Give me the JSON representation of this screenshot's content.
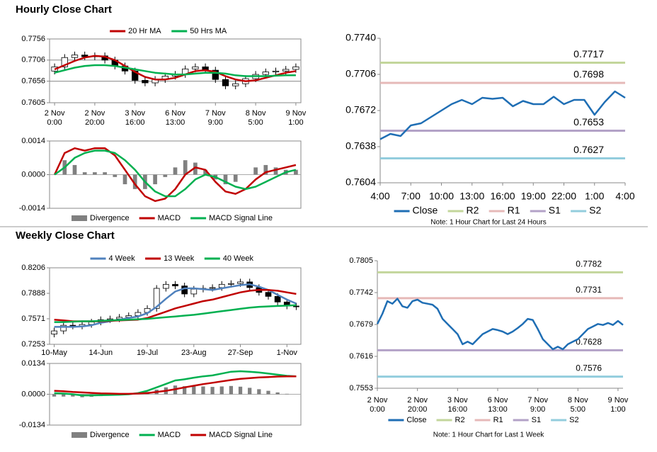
{
  "headings": [
    "Hourly Close Chart",
    "Weekly Close Chart"
  ],
  "chart_data": [
    {
      "type": "candlestick",
      "categories": [
        [
          "2 Nov",
          "0:00"
        ],
        null,
        null,
        null,
        [
          "2 Nov",
          "20:00"
        ],
        null,
        null,
        null,
        [
          "3 Nov",
          "16:00"
        ],
        null,
        null,
        null,
        [
          "6 Nov",
          "13:00"
        ],
        null,
        null,
        null,
        [
          "7 Nov",
          "9:00"
        ],
        null,
        null,
        null,
        [
          "8 Nov",
          "5:00"
        ],
        null,
        null,
        null,
        [
          "9 Nov",
          "1:00"
        ]
      ],
      "candles": {
        "open": [
          0.768,
          0.769,
          0.7712,
          0.7718,
          0.7714,
          0.7716,
          0.7706,
          0.7692,
          0.768,
          0.7658,
          0.7652,
          0.766,
          0.7668,
          0.7672,
          0.7685,
          0.769,
          0.7682,
          0.766,
          0.7645,
          0.765,
          0.7662,
          0.7672,
          0.7678,
          0.768,
          0.7684
        ],
        "high": [
          0.7698,
          0.772,
          0.7726,
          0.7726,
          0.7724,
          0.7724,
          0.7714,
          0.77,
          0.7688,
          0.7666,
          0.7668,
          0.7676,
          0.768,
          0.7693,
          0.7698,
          0.7698,
          0.769,
          0.7668,
          0.7658,
          0.767,
          0.768,
          0.7686,
          0.7688,
          0.7692,
          0.7698
        ],
        "low": [
          0.7672,
          0.7682,
          0.7704,
          0.7706,
          0.7706,
          0.7698,
          0.7684,
          0.7672,
          0.765,
          0.7644,
          0.7644,
          0.7652,
          0.766,
          0.7664,
          0.7677,
          0.7674,
          0.7652,
          0.7637,
          0.7637,
          0.7642,
          0.7654,
          0.7664,
          0.767,
          0.7672,
          0.7676
        ],
        "close": [
          0.769,
          0.7712,
          0.7718,
          0.7714,
          0.7716,
          0.7706,
          0.7692,
          0.768,
          0.7658,
          0.7652,
          0.766,
          0.7668,
          0.7672,
          0.7685,
          0.769,
          0.7682,
          0.766,
          0.7645,
          0.765,
          0.7662,
          0.7672,
          0.7678,
          0.768,
          0.7684,
          0.769
        ]
      },
      "series": [
        {
          "name": "20 Hr MA",
          "color": "#c00000",
          "values": [
            0.7684,
            0.7694,
            0.7704,
            0.7712,
            0.7716,
            0.7714,
            0.7706,
            0.7692,
            0.7678,
            0.7666,
            0.766,
            0.766,
            0.7664,
            0.7672,
            0.768,
            0.7682,
            0.7678,
            0.7668,
            0.766,
            0.7656,
            0.7658,
            0.7664,
            0.767,
            0.7676,
            0.768
          ]
        },
        {
          "name": "50 Hrs MA",
          "color": "#00b050",
          "values": [
            0.7676,
            0.7682,
            0.7688,
            0.7692,
            0.7694,
            0.7694,
            0.7692,
            0.7688,
            0.7684,
            0.768,
            0.7676,
            0.7674,
            0.7672,
            0.7672,
            0.7674,
            0.7676,
            0.7676,
            0.7674,
            0.767,
            0.7668,
            0.7668,
            0.7668,
            0.7669,
            0.767,
            0.767
          ]
        }
      ],
      "ylim": [
        0.7605,
        0.7756
      ],
      "yticks": [
        0.7605,
        0.7656,
        0.7706,
        0.7756
      ],
      "grid": true
    },
    {
      "type": "combo",
      "series": [
        {
          "name": "Divergence",
          "color": "#808080",
          "kind": "bar",
          "values": [
            0,
            0.0006,
            0.0004,
            0.0001,
            0.0001,
            0.0001,
            -0.0001,
            -0.0004,
            -0.0006,
            -0.0006,
            -0.0004,
            -0.0001,
            0.0003,
            0.0006,
            0.0005,
            0.0002,
            -0.0002,
            -0.0004,
            -0.0003,
            0,
            0.0003,
            0.0004,
            0.0003,
            0.0002,
            0.0002
          ]
        },
        {
          "name": "MACD",
          "color": "#c00000",
          "kind": "line",
          "values": [
            0,
            0.0009,
            0.0011,
            0.001,
            0.0011,
            0.0011,
            0.0008,
            0.0002,
            -0.0004,
            -0.0009,
            -0.0011,
            -0.001,
            -0.0006,
            0.0,
            0.0003,
            0.0002,
            -0.0003,
            -0.0007,
            -0.0008,
            -0.0006,
            -0.0002,
            0.0001,
            0.0002,
            0.0003,
            0.0004
          ]
        },
        {
          "name": "MACD Signal Line",
          "color": "#00b050",
          "kind": "line",
          "values": [
            0,
            0.0003,
            0.0007,
            0.0009,
            0.001,
            0.001,
            0.0009,
            0.0006,
            0.0002,
            -0.0003,
            -0.0007,
            -0.0009,
            -0.0009,
            -0.0006,
            -0.0002,
            0.0,
            -0.0001,
            -0.0003,
            -0.0005,
            -0.0006,
            -0.0005,
            -0.0003,
            -0.0001,
            0.0001,
            0.0002
          ]
        }
      ],
      "ylim": [
        -0.0014,
        0.0014
      ],
      "yticks": [
        -0.0014,
        {
          "value": 0,
          "label": "0.0000"
        },
        0.0014
      ],
      "grid": false
    },
    {
      "type": "line",
      "categories": [
        "4:00",
        null,
        null,
        "7:00",
        null,
        null,
        "10:00",
        null,
        null,
        "13:00",
        null,
        null,
        "16:00",
        null,
        null,
        "19:00",
        null,
        null,
        "22:00",
        null,
        null,
        "1:00",
        null,
        null,
        "4:00"
      ],
      "series": [
        {
          "name": "Close",
          "color": "#1f6eb4",
          "values": [
            0.7645,
            0.765,
            0.7648,
            0.7658,
            0.766,
            0.7666,
            0.7672,
            0.7678,
            0.7682,
            0.7678,
            0.7684,
            0.7683,
            0.7684,
            0.7676,
            0.7681,
            0.7678,
            0.7678,
            0.7685,
            0.7678,
            0.7682,
            0.7682,
            0.7668,
            0.768,
            0.769,
            0.7684
          ]
        }
      ],
      "levels": [
        {
          "name": "R2",
          "color": "#c3d69b",
          "value": 0.7717
        },
        {
          "name": "R1",
          "color": "#e6b9b8",
          "value": 0.7698
        },
        {
          "name": "S1",
          "color": "#b3a2c7",
          "value": 0.7653
        },
        {
          "name": "S2",
          "color": "#93cddd",
          "value": 0.7627
        }
      ],
      "ylim": [
        0.7604,
        0.774
      ],
      "yticks": [
        0.7604,
        0.7638,
        0.7672,
        0.7706,
        {
          "value": 0.774,
          "label": "0.7740"
        }
      ],
      "note": "Note: 1 Hour Chart for Last 24 Hours",
      "grid": false
    },
    {
      "type": "candlestick",
      "categories": [
        "10-May",
        null,
        null,
        null,
        null,
        "14-Jun",
        null,
        null,
        null,
        null,
        "19-Jul",
        null,
        null,
        null,
        null,
        "23-Aug",
        null,
        null,
        null,
        null,
        "27-Sep",
        null,
        null,
        null,
        null,
        "1-Nov",
        null
      ],
      "candles": {
        "open": [
          0.738,
          0.742,
          0.749,
          0.748,
          0.75,
          0.753,
          0.756,
          0.757,
          0.759,
          0.761,
          0.765,
          0.77,
          0.795,
          0.8,
          0.798,
          0.788,
          0.794,
          0.795,
          0.796,
          0.8,
          0.801,
          0.803,
          0.796,
          0.79,
          0.785,
          0.778,
          0.773
        ],
        "high": [
          0.746,
          0.753,
          0.753,
          0.754,
          0.757,
          0.76,
          0.761,
          0.763,
          0.765,
          0.769,
          0.774,
          0.799,
          0.804,
          0.804,
          0.802,
          0.798,
          0.799,
          0.8,
          0.804,
          0.805,
          0.807,
          0.807,
          0.8,
          0.794,
          0.789,
          0.782,
          0.777
        ],
        "low": [
          0.734,
          0.738,
          0.744,
          0.744,
          0.746,
          0.749,
          0.752,
          0.753,
          0.755,
          0.757,
          0.761,
          0.766,
          0.791,
          0.794,
          0.784,
          0.784,
          0.79,
          0.791,
          0.792,
          0.796,
          0.797,
          0.792,
          0.786,
          0.781,
          0.774,
          0.769,
          0.768
        ],
        "close": [
          0.742,
          0.749,
          0.748,
          0.75,
          0.753,
          0.756,
          0.757,
          0.759,
          0.761,
          0.765,
          0.77,
          0.795,
          0.8,
          0.798,
          0.788,
          0.794,
          0.795,
          0.796,
          0.8,
          0.801,
          0.803,
          0.796,
          0.79,
          0.785,
          0.778,
          0.773,
          0.772
        ]
      },
      "series": [
        {
          "name": "4 Week",
          "color": "#4f81bd",
          "values": [
            0.747,
            0.747,
            0.747,
            0.7475,
            0.749,
            0.752,
            0.754,
            0.756,
            0.758,
            0.76,
            0.764,
            0.772,
            0.782,
            0.791,
            0.795,
            0.795,
            0.794,
            0.793,
            0.795,
            0.797,
            0.799,
            0.8,
            0.797,
            0.793,
            0.787,
            0.781,
            0.776
          ]
        },
        {
          "name": "13 Week",
          "color": "#c00000",
          "values": [
            0.756,
            0.755,
            0.754,
            0.754,
            0.754,
            0.754,
            0.7545,
            0.755,
            0.7555,
            0.756,
            0.758,
            0.762,
            0.766,
            0.77,
            0.773,
            0.776,
            0.779,
            0.781,
            0.784,
            0.787,
            0.79,
            0.792,
            0.793,
            0.793,
            0.792,
            0.79,
            0.788
          ]
        },
        {
          "name": "40 Week",
          "color": "#00b050",
          "values": [
            0.753,
            0.753,
            0.7535,
            0.754,
            0.754,
            0.7545,
            0.755,
            0.7555,
            0.756,
            0.7565,
            0.757,
            0.758,
            0.759,
            0.76,
            0.761,
            0.762,
            0.7635,
            0.765,
            0.7665,
            0.768,
            0.7695,
            0.771,
            0.772,
            0.7725,
            0.773,
            0.7735,
            0.774
          ]
        }
      ],
      "ylim": [
        0.7253,
        0.8206
      ],
      "yticks": [
        0.7253,
        0.7571,
        0.7888,
        0.8206
      ],
      "grid": false
    },
    {
      "type": "combo",
      "series": [
        {
          "name": "Divergence",
          "color": "#808080",
          "kind": "bar",
          "values": [
            -0.001,
            -0.001,
            -0.001,
            -0.0013,
            -0.0011,
            -0.0008,
            -0.0006,
            -0.0004,
            -0.0002,
            0.0002,
            0.001,
            0.002,
            0.003,
            0.0038,
            0.0035,
            0.0035,
            0.0034,
            0.0032,
            0.0034,
            0.0036,
            0.0033,
            0.0028,
            0.0022,
            0.0015,
            0.0008,
            0.0002,
            0.0
          ]
        },
        {
          "name": "MACD",
          "color": "#00b050",
          "kind": "line",
          "values": [
            0.0005,
            0.0003,
            0.0,
            -0.0005,
            -0.0005,
            -0.0004,
            -0.0003,
            -0.0002,
            0.0,
            0.0005,
            0.0015,
            0.003,
            0.0045,
            0.006,
            0.0065,
            0.0072,
            0.0078,
            0.0082,
            0.009,
            0.0098,
            0.01,
            0.0098,
            0.0095,
            0.009,
            0.0085,
            0.008,
            0.0078
          ]
        },
        {
          "name": "MACD Signal Line",
          "color": "#c00000",
          "kind": "line",
          "values": [
            0.0015,
            0.0013,
            0.001,
            0.0008,
            0.0006,
            0.0004,
            0.0003,
            0.0002,
            0.0002,
            0.0003,
            0.0005,
            0.001,
            0.0015,
            0.0022,
            0.003,
            0.0037,
            0.0044,
            0.005,
            0.0056,
            0.0062,
            0.0067,
            0.007,
            0.0073,
            0.0075,
            0.0077,
            0.0078,
            0.0078
          ]
        }
      ],
      "ylim": [
        -0.0134,
        0.0134
      ],
      "yticks": [
        -0.0134,
        {
          "value": 0,
          "label": "0.0000"
        },
        0.0134
      ],
      "grid": false
    },
    {
      "type": "line",
      "categories": [
        [
          "2 Nov",
          "0:00"
        ],
        null,
        null,
        null,
        null,
        null,
        null,
        null,
        [
          "2 Nov",
          "20:00"
        ],
        null,
        null,
        null,
        null,
        null,
        null,
        null,
        [
          "3 Nov",
          "16:00"
        ],
        null,
        null,
        null,
        null,
        null,
        null,
        null,
        [
          "6 Nov",
          "13:00"
        ],
        null,
        null,
        null,
        null,
        null,
        null,
        null,
        [
          "7 Nov",
          "9:00"
        ],
        null,
        null,
        null,
        null,
        null,
        null,
        null,
        [
          "8 Nov",
          "5:00"
        ],
        null,
        null,
        null,
        null,
        null,
        null,
        null,
        [
          "9 Nov",
          "1:00"
        ],
        null
      ],
      "series": [
        {
          "name": "Close",
          "color": "#1f6eb4",
          "values": [
            0.768,
            0.77,
            0.7725,
            0.772,
            0.773,
            0.7715,
            0.7712,
            0.7725,
            0.7728,
            0.7722,
            0.772,
            0.7718,
            0.771,
            0.769,
            0.768,
            0.767,
            0.766,
            0.764,
            0.7645,
            0.764,
            0.765,
            0.766,
            0.7665,
            0.767,
            0.7668,
            0.7665,
            0.766,
            0.7665,
            0.7672,
            0.768,
            0.769,
            0.7688,
            0.767,
            0.765,
            0.764,
            0.763,
            0.7635,
            0.763,
            0.764,
            0.7645,
            0.765,
            0.766,
            0.767,
            0.7675,
            0.768,
            0.7678,
            0.7682,
            0.7678,
            0.7686,
            0.7678
          ]
        }
      ],
      "levels": [
        {
          "name": "R2",
          "color": "#c3d69b",
          "value": 0.7782
        },
        {
          "name": "R1",
          "color": "#e6b9b8",
          "value": 0.7731
        },
        {
          "name": "S1",
          "color": "#b3a2c7",
          "value": 0.7628
        },
        {
          "name": "S2",
          "color": "#93cddd",
          "value": 0.7576
        }
      ],
      "ylim": [
        0.7553,
        0.7805
      ],
      "yticks": [
        0.7553,
        0.7616,
        0.7679,
        0.7742,
        0.7805
      ],
      "note": "Note: 1 Hour Chart for Last 1 Week",
      "grid": false
    }
  ]
}
